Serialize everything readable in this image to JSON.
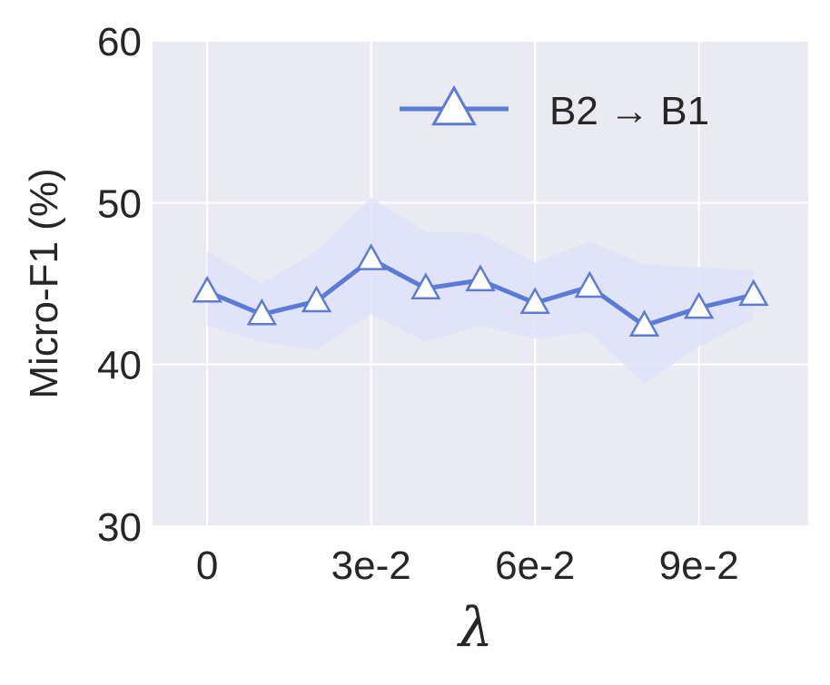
{
  "chart_data": {
    "type": "line",
    "xlabel": "λ",
    "ylabel": "Micro-F1 (%)",
    "x": [
      0,
      0.01,
      0.02,
      0.03,
      0.04,
      0.05,
      0.06,
      0.07,
      0.08,
      0.09,
      0.1
    ],
    "xticks": [
      0,
      0.03,
      0.06,
      0.09
    ],
    "xtick_labels": [
      "0",
      "3e-2",
      "6e-2",
      "9e-2"
    ],
    "xlim": [
      -0.01,
      0.11
    ],
    "ylim": [
      30,
      60
    ],
    "yticks": [
      30,
      40,
      50,
      60
    ],
    "ytick_labels": [
      "30",
      "40",
      "50",
      "60"
    ],
    "grid": true,
    "legend_position": "top-right",
    "series": [
      {
        "name": "B2 → B1",
        "color": "#5b7bd8",
        "marker": "triangle-open",
        "values": [
          44.5,
          43.1,
          43.9,
          46.5,
          44.7,
          45.2,
          43.8,
          44.8,
          42.4,
          43.5,
          44.3
        ],
        "band_upper": [
          47.0,
          45.0,
          47.0,
          50.3,
          48.2,
          48.1,
          46.3,
          47.6,
          46.2,
          46.0,
          45.8
        ],
        "band_lower": [
          42.4,
          41.4,
          40.9,
          43.1,
          41.4,
          42.4,
          41.6,
          42.0,
          38.8,
          41.1,
          42.8
        ]
      }
    ],
    "colors": {
      "plot_background": "#eaeaf2",
      "grid": "#ffffff",
      "band_fill": "#dfe2fa"
    }
  }
}
